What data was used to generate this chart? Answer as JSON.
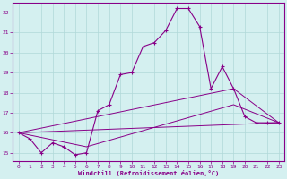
{
  "xlabel": "Windchill (Refroidissement éolien,°C)",
  "background_color": "#d4f0f0",
  "grid_color": "#b0d8d8",
  "line_color": "#880088",
  "xlim": [
    -0.5,
    23.5
  ],
  "ylim": [
    14.6,
    22.5
  ],
  "yticks": [
    15,
    16,
    17,
    18,
    19,
    20,
    21,
    22
  ],
  "xticks": [
    0,
    1,
    2,
    3,
    4,
    5,
    6,
    7,
    8,
    9,
    10,
    11,
    12,
    13,
    14,
    15,
    16,
    17,
    18,
    19,
    20,
    21,
    22,
    23
  ],
  "line1_x": [
    0,
    1,
    2,
    3,
    4,
    5,
    6,
    7,
    8,
    9,
    10,
    11,
    12,
    13,
    14,
    15,
    16,
    17,
    18,
    19,
    20,
    21,
    22,
    23
  ],
  "line1_y": [
    16.0,
    15.7,
    15.0,
    15.5,
    15.3,
    14.9,
    15.0,
    17.1,
    17.4,
    18.9,
    19.0,
    20.3,
    20.5,
    21.1,
    22.2,
    22.2,
    21.3,
    18.2,
    19.3,
    18.2,
    16.8,
    16.5,
    16.5,
    16.5
  ],
  "line2_x": [
    0,
    23
  ],
  "line2_y": [
    16.0,
    16.5
  ],
  "line3_x": [
    0,
    19,
    23
  ],
  "line3_y": [
    16.0,
    18.2,
    16.5
  ],
  "line4_x": [
    0,
    6,
    19,
    23
  ],
  "line4_y": [
    16.0,
    15.3,
    17.4,
    16.5
  ]
}
